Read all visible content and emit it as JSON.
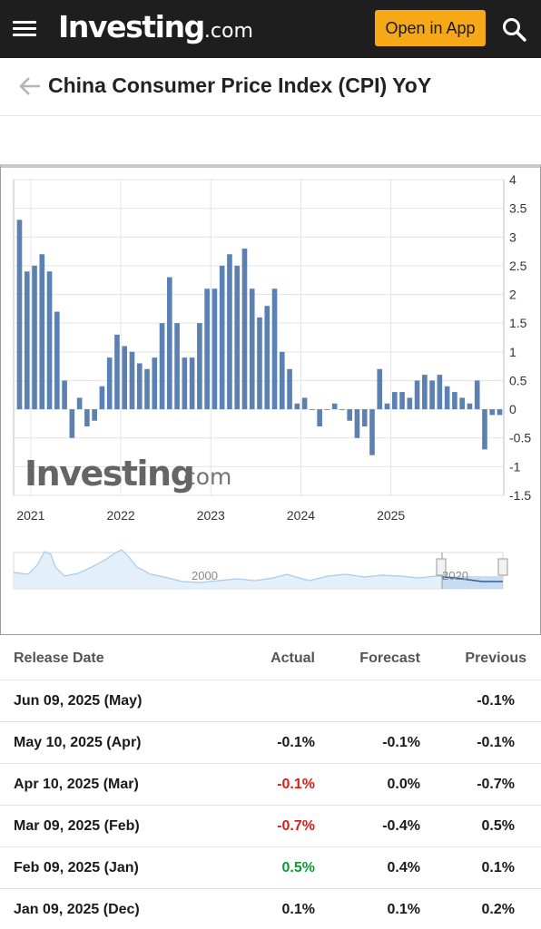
{
  "header": {
    "logo_main": "Investing",
    "logo_sub": ".com",
    "open_app_label": "Open in App"
  },
  "page": {
    "title": "China Consumer Price Index (CPI) YoY"
  },
  "chart_data": {
    "type": "bar",
    "title": "",
    "xlabel": "",
    "ylabel": "",
    "ylim": [
      -1.5,
      4
    ],
    "yticks": [
      "4",
      "3.5",
      "3",
      "2.5",
      "2",
      "1.5",
      "1",
      "0.5",
      "0",
      "-0.5",
      "-1",
      "-1.5"
    ],
    "x_tick_labels": [
      "2021",
      "2022",
      "2023",
      "2024",
      "2025"
    ],
    "watermark": "Investing.com",
    "navigator_labels": [
      "2000",
      "2020"
    ],
    "bar_color": "#5b80b2",
    "grid": true,
    "series": [
      {
        "values": [
          3.3,
          2.4,
          2.5,
          2.7,
          2.4,
          1.7,
          0.5,
          -0.5,
          0.2,
          -0.3,
          -0.2,
          0.4,
          0.9,
          1.3,
          1.1,
          1.0,
          0.8,
          0.7,
          0.9,
          1.5,
          2.3,
          1.5,
          0.9,
          0.9,
          1.5,
          2.1,
          2.1,
          2.5,
          2.7,
          2.5,
          2.8,
          2.1,
          1.6,
          1.8,
          2.1,
          1.0,
          0.7,
          0.1,
          0.2,
          0.0,
          -0.3,
          0.0,
          0.1,
          0.0,
          -0.2,
          -0.5,
          -0.3,
          -0.8,
          0.7,
          0.1,
          0.3,
          0.3,
          0.2,
          0.5,
          0.6,
          0.5,
          0.6,
          0.4,
          0.3,
          0.2,
          0.1,
          0.5,
          -0.7,
          -0.1,
          -0.1
        ]
      }
    ]
  },
  "table": {
    "headers": {
      "date": "Release Date",
      "actual": "Actual",
      "forecast": "Forecast",
      "previous": "Previous"
    },
    "rows": [
      {
        "date": "Jun 09, 2025 (May)",
        "actual": "",
        "forecast": "",
        "previous": "-0.1%"
      },
      {
        "date": "May 10, 2025 (Apr)",
        "actual": "-0.1%",
        "forecast": "-0.1%",
        "previous": "-0.1%"
      },
      {
        "date": "Apr 10, 2025 (Mar)",
        "actual": "-0.1%",
        "forecast": "0.0%",
        "previous": "-0.7%"
      },
      {
        "date": "Mar 09, 2025 (Feb)",
        "actual": "-0.7%",
        "forecast": "-0.4%",
        "previous": "0.5%"
      },
      {
        "date": "Feb 09, 2025 (Jan)",
        "actual": "0.5%",
        "forecast": "0.4%",
        "previous": "0.1%"
      },
      {
        "date": "Jan 09, 2025 (Dec)",
        "actual": "0.1%",
        "forecast": "0.1%",
        "previous": "0.2%"
      }
    ]
  },
  "colors": {
    "topbar": "#1e1e1e",
    "accent": "#f7a817",
    "negative": "#d91e18",
    "positive": "#0c9b30"
  }
}
